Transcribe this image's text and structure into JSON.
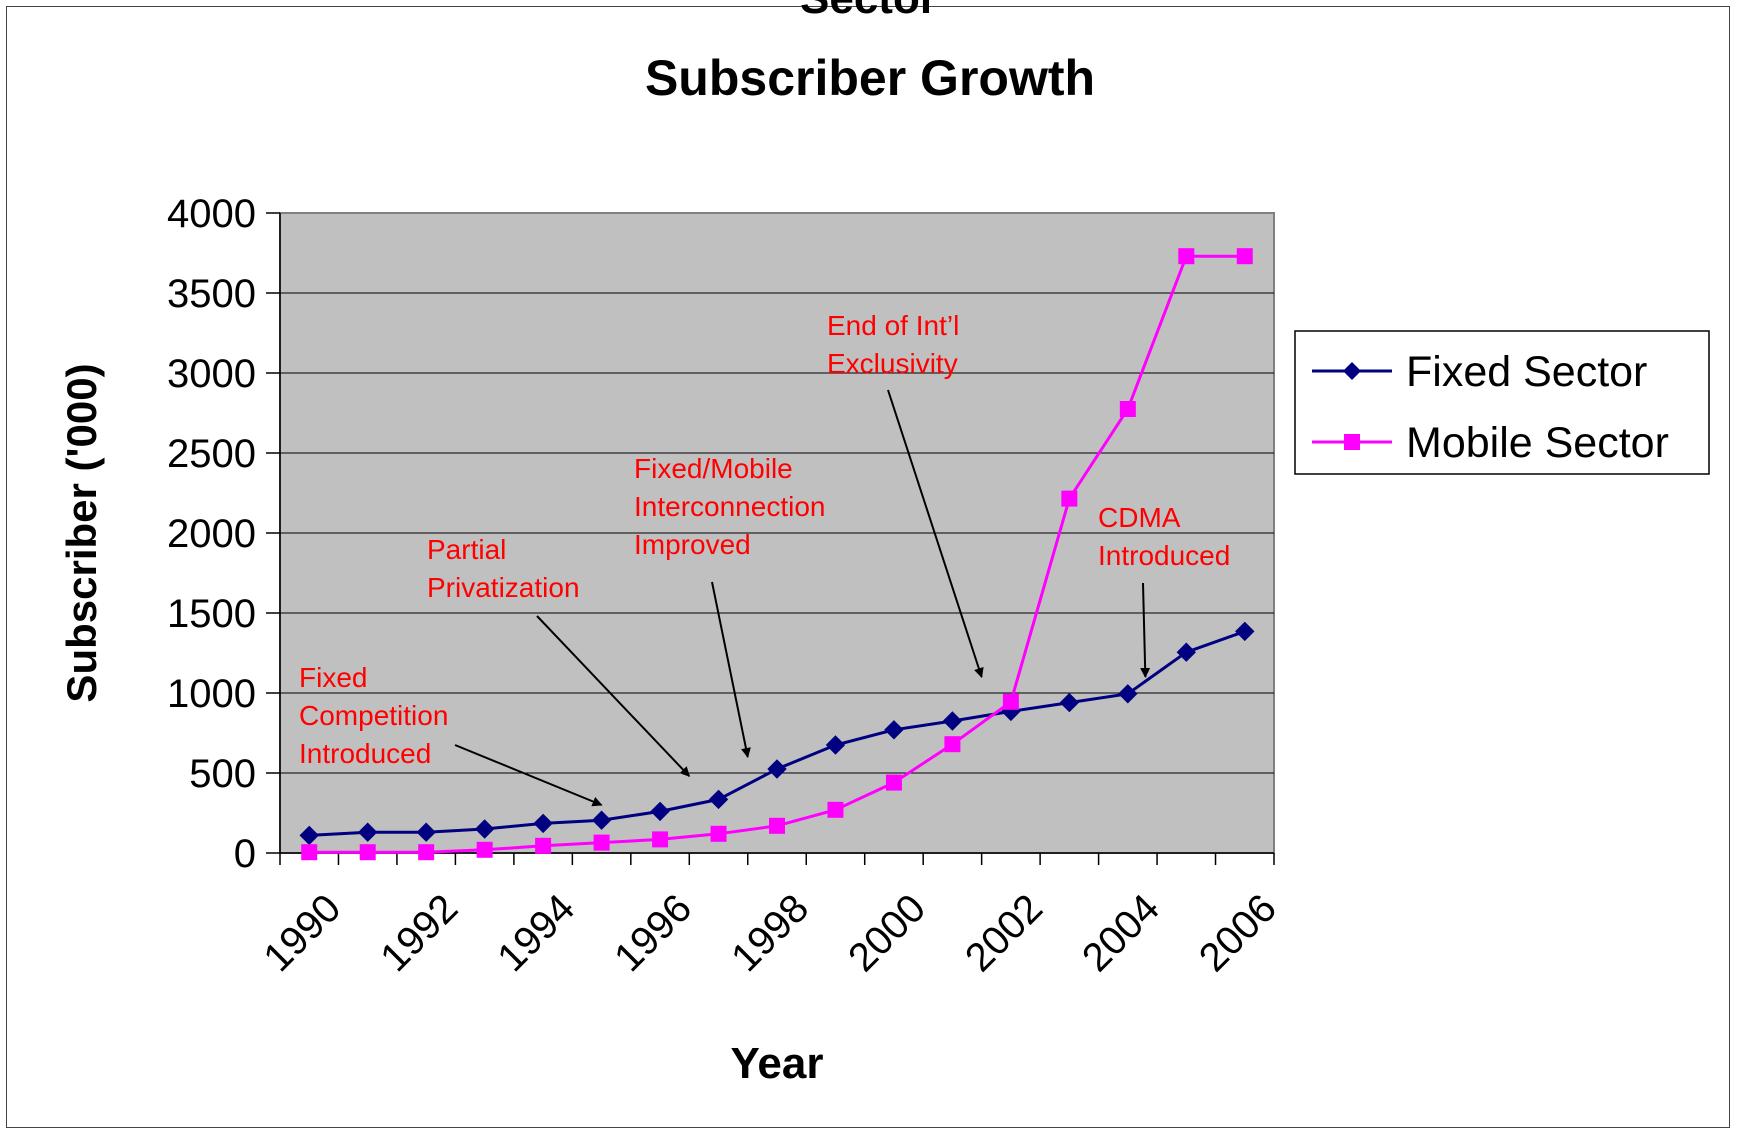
{
  "clipped_heading": "Sector",
  "chart_data": {
    "type": "line",
    "title": "Subscriber Growth",
    "xlabel": "Year",
    "ylabel": "Subscriber ('000)",
    "x": [
      1990,
      1991,
      1992,
      1993,
      1994,
      1995,
      1996,
      1997,
      1998,
      1999,
      2000,
      2001,
      2002,
      2003,
      2004,
      2005,
      2006
    ],
    "x_tick_labels": [
      "1990",
      "1992",
      "1994",
      "1996",
      "1998",
      "2000",
      "2002",
      "2004",
      "2006"
    ],
    "y_tick_labels": [
      "0",
      "500",
      "1000",
      "1500",
      "2000",
      "2500",
      "3000",
      "3500",
      "4000"
    ],
    "ylim": [
      0,
      4000
    ],
    "grid": true,
    "legend_position": "right",
    "series": [
      {
        "name": "Fixed Sector",
        "color": "#000080",
        "marker": "diamond",
        "values": [
          110,
          130,
          130,
          150,
          185,
          205,
          260,
          335,
          525,
          675,
          770,
          825,
          885,
          940,
          995,
          1255,
          1385
        ]
      },
      {
        "name": "Mobile Sector",
        "color": "#ff00ff",
        "marker": "square",
        "values": [
          5,
          5,
          5,
          20,
          45,
          65,
          85,
          120,
          170,
          270,
          440,
          680,
          945,
          2215,
          2775,
          3730,
          3730
        ]
      }
    ],
    "annotations": [
      {
        "lines": [
          "Fixed",
          "Competition",
          "Introduced"
        ],
        "arrow_to": [
          1995,
          300
        ]
      },
      {
        "lines": [
          "Partial",
          "Privatization"
        ],
        "arrow_to": [
          1996.5,
          480
        ]
      },
      {
        "lines": [
          "Fixed/Mobile",
          "Interconnection",
          "Improved"
        ],
        "arrow_to": [
          1997.5,
          600
        ]
      },
      {
        "lines": [
          "End of Int’l",
          "Exclusivity"
        ],
        "arrow_to": [
          2001.5,
          1100
        ]
      },
      {
        "lines": [
          "CDMA",
          "Introduced"
        ],
        "arrow_to": [
          2004.3,
          1100
        ]
      }
    ]
  }
}
